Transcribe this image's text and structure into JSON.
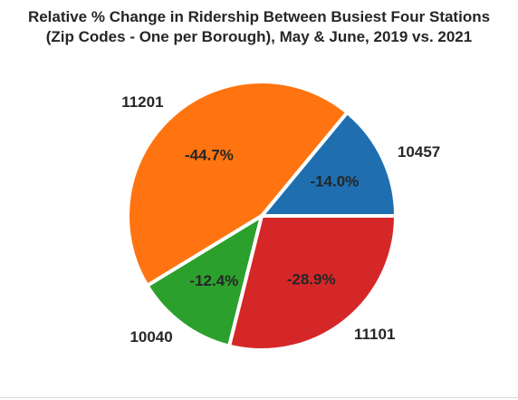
{
  "chart_data": {
    "type": "pie",
    "title": "Relative % Change in Ridership Between Busiest Four Stations",
    "subtitle": "(Zip Codes - One per Borough), May & June, 2019 vs. 2021",
    "slices": [
      {
        "label": "10457",
        "value": 14.0,
        "pct_label": "-14.0%",
        "color": "#1f6fb0"
      },
      {
        "label": "11201",
        "value": 44.7,
        "pct_label": "-44.7%",
        "color": "#ff7410"
      },
      {
        "label": "10040",
        "value": 12.4,
        "pct_label": "-12.4%",
        "color": "#2ca02c"
      },
      {
        "label": "11101",
        "value": 28.9,
        "pct_label": "-28.9%",
        "color": "#d62728"
      }
    ]
  }
}
